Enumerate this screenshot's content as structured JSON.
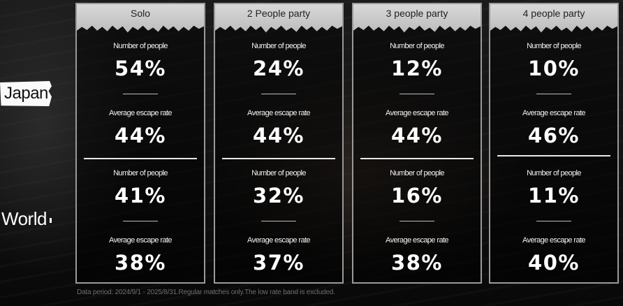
{
  "regions": {
    "japan": "Japan",
    "world": "World"
  },
  "columns": [
    {
      "header": "Solo",
      "japan": {
        "people_label": "Number of people",
        "people_value": "54%",
        "escape_label": "Average escape rate",
        "escape_value": "44%"
      },
      "world": {
        "people_label": "Number of people",
        "people_value": "41%",
        "escape_label": "Average escape rate",
        "escape_value": "38%"
      }
    },
    {
      "header": "2 People party",
      "japan": {
        "people_label": "Number of people",
        "people_value": "24%",
        "escape_label": "Average escape rate",
        "escape_value": "44%"
      },
      "world": {
        "people_label": "Number of people",
        "people_value": "32%",
        "escape_label": "Average escape rate",
        "escape_value": "37%"
      }
    },
    {
      "header": "3 people party",
      "japan": {
        "people_label": "Number of people",
        "people_value": "12%",
        "escape_label": "Average escape rate",
        "escape_value": "44%"
      },
      "world": {
        "people_label": "Number of people",
        "people_value": "16%",
        "escape_label": "Average escape rate",
        "escape_value": "38%"
      }
    },
    {
      "header": "4 people party",
      "japan": {
        "people_label": "Number of people",
        "people_value": "10%",
        "escape_label": "Average escape rate",
        "escape_value": "46%"
      },
      "world": {
        "people_label": "Number of people",
        "people_value": "11%",
        "escape_label": "Average escape rate",
        "escape_value": "40%"
      }
    }
  ],
  "footer": "Data period: 2024/9/1 - 2025/8/31.Regular matches only.The low rate band is excluded."
}
